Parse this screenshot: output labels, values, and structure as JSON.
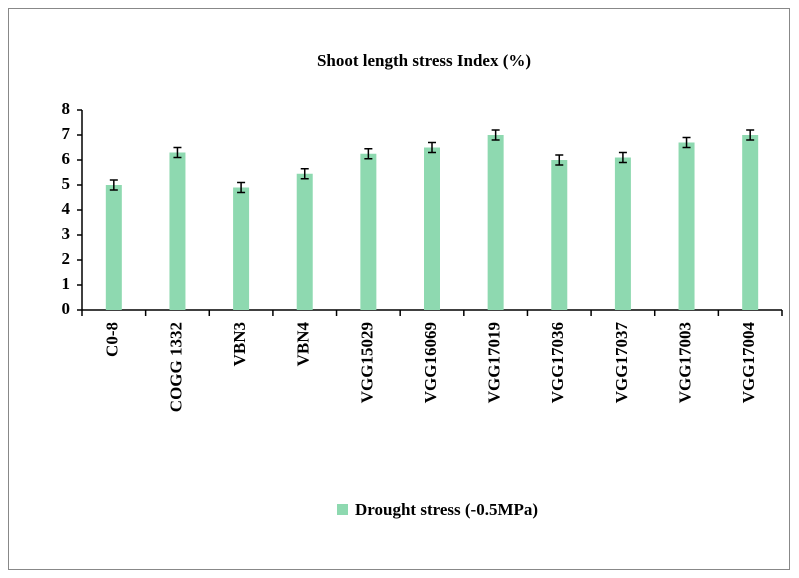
{
  "chart_data": {
    "type": "bar",
    "title": "Shoot length stress Index (%)",
    "categories": [
      "C0-8",
      "COGG 1332",
      "VBN3",
      "VBN4",
      "VGG15029",
      "VGG16069",
      "VGG17019",
      "VGG17036",
      "VGG17037",
      "VGG17003",
      "VGG17004"
    ],
    "series": [
      {
        "name": "Drought stress (-0.5MPa)",
        "color": "#8ed9b0",
        "values": [
          5.0,
          6.3,
          4.9,
          5.45,
          6.25,
          6.5,
          7.0,
          6.0,
          6.1,
          6.7,
          7.0
        ],
        "errors": [
          0.2,
          0.2,
          0.2,
          0.2,
          0.2,
          0.2,
          0.2,
          0.2,
          0.2,
          0.2,
          0.2
        ]
      }
    ],
    "ylim": [
      0,
      8
    ],
    "yticks": [
      0,
      1,
      2,
      3,
      4,
      5,
      6,
      7,
      8
    ],
    "grid": false,
    "legend": "bottom"
  }
}
